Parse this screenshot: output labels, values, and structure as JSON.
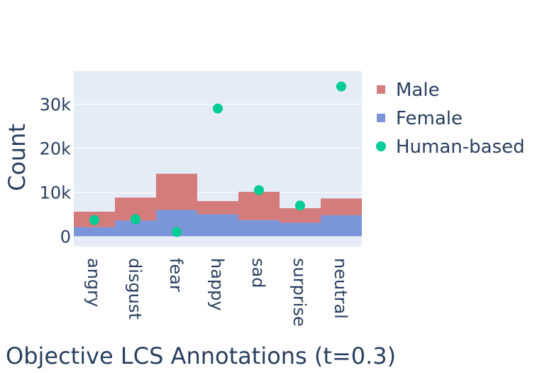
{
  "chart_data": {
    "type": "bar",
    "barmode": "stack",
    "title": "",
    "xlabel": "Objective LCS Annotations (t=0.3)",
    "ylabel": "Count",
    "categories": [
      "angry",
      "disgust",
      "fear",
      "happy",
      "sad",
      "surprise",
      "neutral"
    ],
    "ylim": [
      -2300,
      37500
    ],
    "yticks": [
      0,
      10000,
      20000,
      30000
    ],
    "ytick_labels": [
      "0",
      "10k",
      "20k",
      "30k"
    ],
    "series": [
      {
        "name": "Male",
        "type": "bar",
        "color": "#d47b7b",
        "values": [
          3500,
          5200,
          8200,
          3000,
          6400,
          3300,
          3800
        ]
      },
      {
        "name": "Female",
        "type": "bar",
        "color": "#7b95d9",
        "values": [
          2100,
          3600,
          6000,
          5000,
          3700,
          3100,
          4800
        ]
      },
      {
        "name": "Human-based",
        "type": "scatter",
        "color": "#00cc96",
        "values": [
          3700,
          3900,
          1000,
          29000,
          10500,
          7000,
          34000
        ]
      }
    ],
    "legend": {
      "placement": "right",
      "items": [
        {
          "label": "Male",
          "color": "#d47b7b",
          "marker": "square"
        },
        {
          "label": "Female",
          "color": "#7b95d9",
          "marker": "square"
        },
        {
          "label": "Human-based",
          "color": "#00cc96",
          "marker": "circle"
        }
      ]
    },
    "plot_bgcolor": "#e5ecf6",
    "gridcolor": "#ffffff"
  }
}
